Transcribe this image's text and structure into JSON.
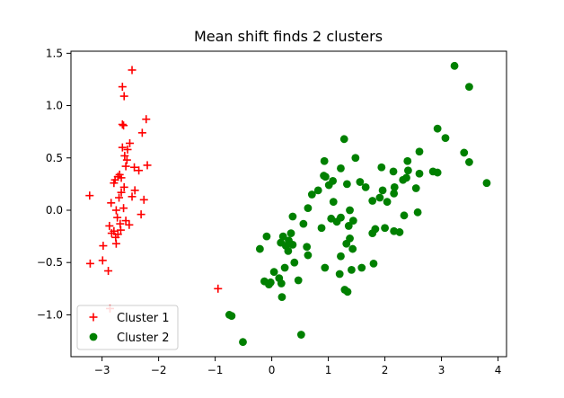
{
  "chart_data": {
    "type": "scatter",
    "title": "Mean shift finds 2 clusters",
    "xlabel": "",
    "ylabel": "",
    "xlim": [
      -3.55,
      4.15
    ],
    "ylim": [
      -1.4,
      1.52
    ],
    "xticks": [
      -3,
      -2,
      -1,
      0,
      1,
      2,
      3,
      4
    ],
    "xtick_labels": [
      "−3",
      "−2",
      "−1",
      "0",
      "1",
      "2",
      "3",
      "4"
    ],
    "yticks": [
      -1.0,
      -0.5,
      0.0,
      0.5,
      1.0,
      1.5
    ],
    "ytick_labels": [
      "−1.0",
      "−0.5",
      "0.0",
      "0.5",
      "1.0",
      "1.5"
    ],
    "grid": false,
    "legend_position": "lower-left",
    "series": [
      {
        "name": "Cluster 1",
        "marker": "plus",
        "color": "#ff0000",
        "points": [
          [
            -2.47,
            1.34
          ],
          [
            -2.64,
            1.18
          ],
          [
            -2.61,
            1.09
          ],
          [
            -2.22,
            0.87
          ],
          [
            -2.64,
            0.82
          ],
          [
            -2.62,
            0.81
          ],
          [
            -2.29,
            0.74
          ],
          [
            -2.51,
            0.64
          ],
          [
            -2.64,
            0.6
          ],
          [
            -2.55,
            0.58
          ],
          [
            -2.6,
            0.52
          ],
          [
            -2.56,
            0.48
          ],
          [
            -2.2,
            0.43
          ],
          [
            -2.58,
            0.42
          ],
          [
            -2.43,
            0.41
          ],
          [
            -2.35,
            0.38
          ],
          [
            -2.69,
            0.34
          ],
          [
            -2.72,
            0.32
          ],
          [
            -2.66,
            0.31
          ],
          [
            -2.77,
            0.29
          ],
          [
            -2.79,
            0.26
          ],
          [
            -2.61,
            0.22
          ],
          [
            -2.42,
            0.19
          ],
          [
            -2.66,
            0.17
          ],
          [
            -2.47,
            0.13
          ],
          [
            -2.7,
            0.12
          ],
          [
            -2.26,
            0.1
          ],
          [
            -2.84,
            0.07
          ],
          [
            -2.62,
            0.02
          ],
          [
            -2.75,
            0.0
          ],
          [
            -2.31,
            -0.04
          ],
          [
            -2.73,
            -0.07
          ],
          [
            -2.58,
            -0.1
          ],
          [
            -2.68,
            -0.13
          ],
          [
            -2.52,
            -0.14
          ],
          [
            -2.87,
            -0.15
          ],
          [
            -2.67,
            -0.19
          ],
          [
            -2.79,
            -0.2
          ],
          [
            -2.83,
            -0.22
          ],
          [
            -2.72,
            -0.23
          ],
          [
            -2.76,
            -0.26
          ],
          [
            -2.75,
            -0.32
          ],
          [
            -2.98,
            -0.34
          ],
          [
            -2.99,
            -0.48
          ],
          [
            -3.21,
            -0.51
          ],
          [
            -2.89,
            -0.58
          ],
          [
            -2.86,
            -0.94
          ],
          [
            -3.22,
            0.14
          ],
          [
            -0.95,
            -0.75
          ]
        ]
      },
      {
        "name": "Cluster 2",
        "marker": "circle",
        "color": "#008000",
        "points": [
          [
            3.23,
            1.38
          ],
          [
            3.49,
            1.18
          ],
          [
            2.93,
            0.78
          ],
          [
            3.07,
            0.69
          ],
          [
            1.28,
            0.68
          ],
          [
            2.61,
            0.56
          ],
          [
            3.4,
            0.55
          ],
          [
            1.48,
            0.5
          ],
          [
            0.93,
            0.47
          ],
          [
            2.4,
            0.47
          ],
          [
            3.49,
            0.46
          ],
          [
            1.94,
            0.41
          ],
          [
            1.22,
            0.4
          ],
          [
            2.41,
            0.38
          ],
          [
            2.15,
            0.37
          ],
          [
            2.85,
            0.37
          ],
          [
            2.93,
            0.36
          ],
          [
            2.61,
            0.35
          ],
          [
            0.92,
            0.33
          ],
          [
            0.95,
            0.32
          ],
          [
            2.38,
            0.31
          ],
          [
            2.32,
            0.29
          ],
          [
            1.08,
            0.28
          ],
          [
            1.56,
            0.27
          ],
          [
            3.8,
            0.26
          ],
          [
            1.33,
            0.25
          ],
          [
            1.01,
            0.24
          ],
          [
            1.66,
            0.22
          ],
          [
            2.17,
            0.22
          ],
          [
            2.55,
            0.21
          ],
          [
            1.96,
            0.19
          ],
          [
            0.82,
            0.19
          ],
          [
            2.16,
            0.16
          ],
          [
            0.71,
            0.15
          ],
          [
            1.91,
            0.12
          ],
          [
            1.78,
            0.09
          ],
          [
            2.04,
            0.08
          ],
          [
            1.09,
            0.08
          ],
          [
            0.64,
            0.02
          ],
          [
            1.38,
            0.0
          ],
          [
            2.58,
            -0.02
          ],
          [
            2.34,
            -0.05
          ],
          [
            0.37,
            -0.06
          ],
          [
            1.22,
            -0.07
          ],
          [
            1.05,
            -0.08
          ],
          [
            1.44,
            -0.1
          ],
          [
            1.15,
            -0.11
          ],
          [
            0.56,
            -0.13
          ],
          [
            1.36,
            -0.15
          ],
          [
            2.0,
            -0.17
          ],
          [
            0.88,
            -0.17
          ],
          [
            1.83,
            -0.18
          ],
          [
            2.16,
            -0.2
          ],
          [
            2.26,
            -0.21
          ],
          [
            0.34,
            -0.22
          ],
          [
            1.78,
            -0.22
          ],
          [
            0.2,
            -0.25
          ],
          [
            -0.09,
            -0.25
          ],
          [
            1.38,
            -0.27
          ],
          [
            0.3,
            -0.29
          ],
          [
            0.16,
            -0.31
          ],
          [
            1.32,
            -0.32
          ],
          [
            0.37,
            -0.33
          ],
          [
            0.25,
            -0.34
          ],
          [
            0.62,
            -0.35
          ],
          [
            1.43,
            -0.37
          ],
          [
            -0.21,
            -0.37
          ],
          [
            0.29,
            -0.39
          ],
          [
            0.64,
            -0.43
          ],
          [
            1.22,
            -0.44
          ],
          [
            0.4,
            -0.5
          ],
          [
            1.8,
            -0.51
          ],
          [
            0.23,
            -0.55
          ],
          [
            1.59,
            -0.55
          ],
          [
            0.94,
            -0.55
          ],
          [
            1.41,
            -0.57
          ],
          [
            0.04,
            -0.59
          ],
          [
            1.2,
            -0.61
          ],
          [
            0.13,
            -0.65
          ],
          [
            0.47,
            -0.67
          ],
          [
            -0.13,
            -0.68
          ],
          [
            -0.02,
            -0.69
          ],
          [
            0.17,
            -0.7
          ],
          [
            -0.05,
            -0.71
          ],
          [
            1.29,
            -0.76
          ],
          [
            1.34,
            -0.78
          ],
          [
            0.18,
            -0.83
          ],
          [
            -0.75,
            -1.0
          ],
          [
            -0.71,
            -1.01
          ],
          [
            0.52,
            -1.19
          ],
          [
            -0.51,
            -1.26
          ]
        ]
      }
    ]
  }
}
